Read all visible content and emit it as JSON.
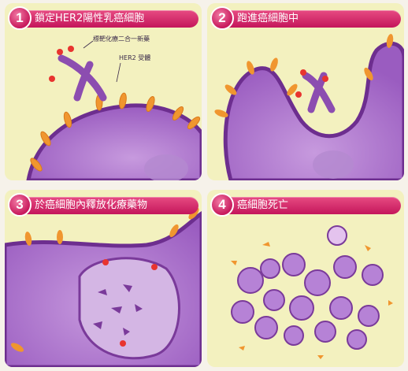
{
  "panels": [
    {
      "number": "1",
      "title": "鎖定HER2陽性乳癌細胞",
      "annotations": {
        "drug": "標靶化療二合一新藥",
        "receptor": "HER2 受體"
      }
    },
    {
      "number": "2",
      "title": "跑進癌細胞中"
    },
    {
      "number": "3",
      "title": "於癌細胞內釋放化療藥物"
    },
    {
      "number": "4",
      "title": "癌細胞死亡"
    }
  ],
  "colors": {
    "panel_bg": "#f3f1bf",
    "cell": "#a267c3",
    "membrane": "#7a3a9a",
    "receptor": "#f39a3a",
    "tab": "#d42a6b"
  }
}
